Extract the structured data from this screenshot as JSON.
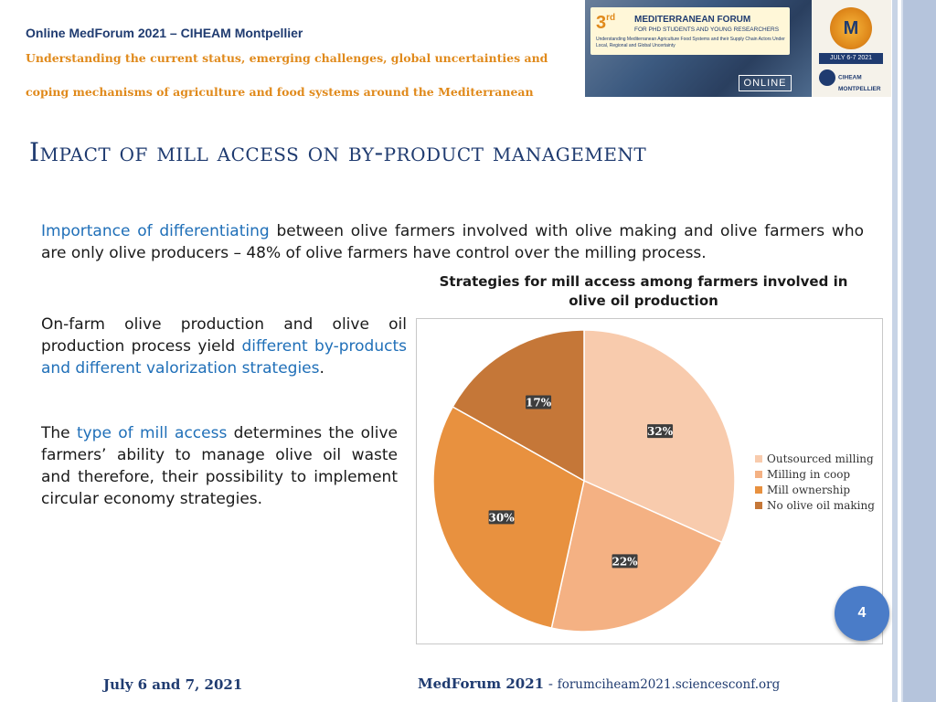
{
  "header": {
    "line1": "Online MedForum 2021 – CIHEAM Montpellier",
    "line2": "Understanding the current status, emerging challenges, global uncertainties and",
    "line3": "coping mechanisms of agriculture and food systems around the Mediterranean"
  },
  "banner": {
    "number": "3",
    "ordinal": "rd",
    "forum": "MEDITERRANEAN FORUM",
    "forum_sub": "FOR PHD STUDENTS AND YOUNG RESEARCHERS",
    "forum_desc": "Understanding Mediterranean Agriculture Food Systems and their Supply Chain Actors Under Local, Regional and Global Uncertainty",
    "online": "ONLINE",
    "logo": "M",
    "date_badge": "JULY 6-7 2021",
    "ciheam": "CIHEAM",
    "ciheam_sub": "MONTPELLIER"
  },
  "slide": {
    "title": "Impact of mill access on by-product management",
    "p1": {
      "hl": "Importance of differentiating",
      "rest": " between olive farmers involved with olive making and olive farmers who are only olive producers – 48% of olive farmers have control over the milling process."
    },
    "p2": {
      "start": "On-farm olive production and olive oil production process yield ",
      "hl": "different by-products and different valorization strategies",
      "end": "."
    },
    "p3": {
      "start": "The ",
      "hl": "type of mill access",
      "end": " determines the olive farmers’ ability to manage olive oil waste and therefore, their possibility to implement circular economy strategies."
    },
    "page_number": "4"
  },
  "chart_data": {
    "type": "pie",
    "title": "Strategies for mill access among farmers involved in olive oil production",
    "categories": [
      "Outsourced milling",
      "Milling in coop",
      "Mill ownership",
      "No olive oil making"
    ],
    "values": [
      32,
      22,
      30,
      17
    ],
    "labels": [
      "32%",
      "22%",
      "30%",
      "17%"
    ],
    "colors": [
      "#f8cbad",
      "#f4b183",
      "#e8913f",
      "#c57738"
    ],
    "legend_position": "right"
  },
  "footer": {
    "date": "July 6 and 7, 2021",
    "forum": "MedForum 2021",
    "sep": " - ",
    "url": "forumciheam2021.sciencesconf.org"
  }
}
